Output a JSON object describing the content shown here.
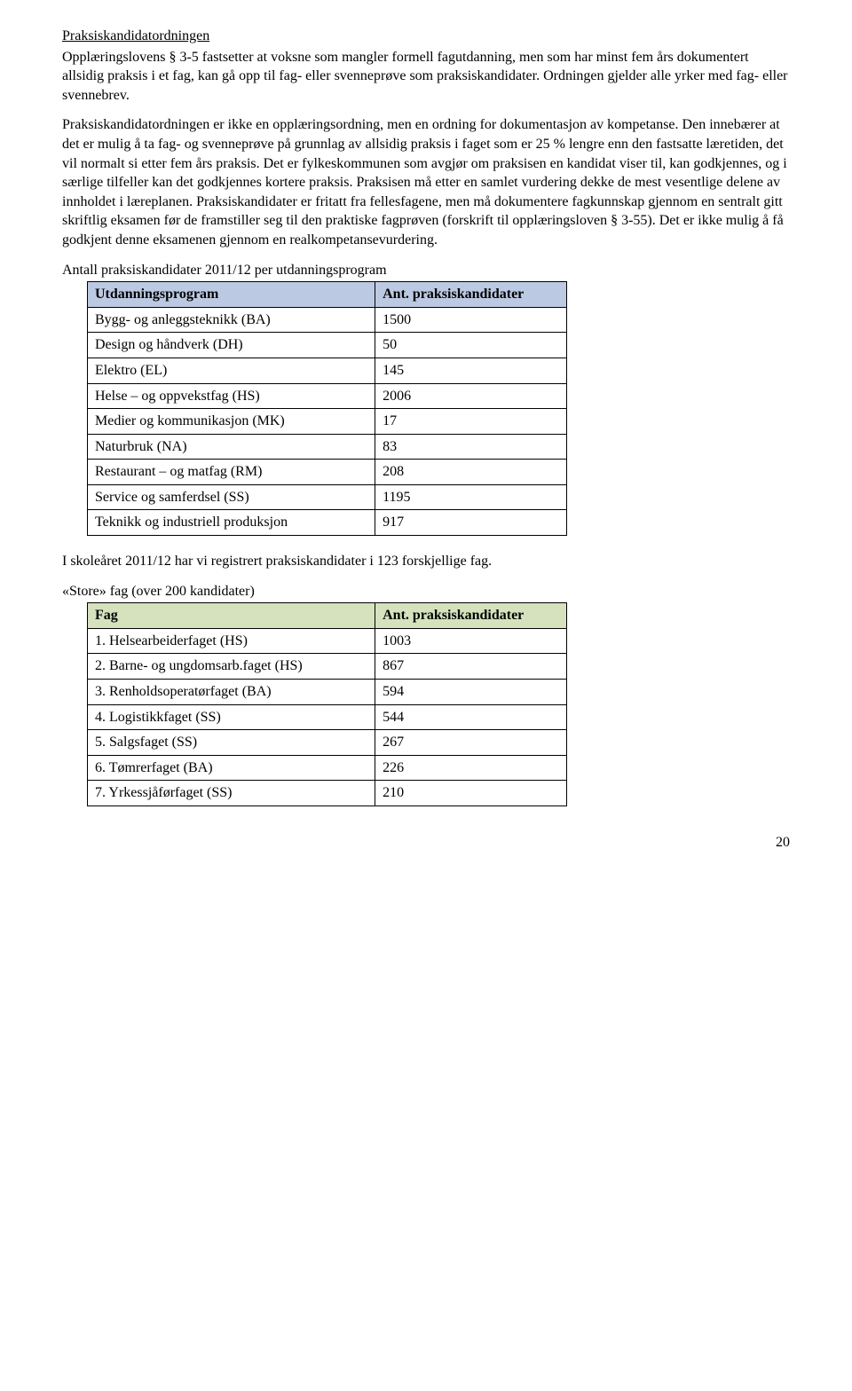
{
  "section_heading": "Praksiskandidatordningen",
  "para1": "Opplæringslovens § 3-5 fastsetter at voksne som mangler formell fagutdanning, men som har minst fem års dokumentert allsidig praksis i et fag, kan gå opp til fag- eller svenneprøve som praksiskandidater. Ordningen gjelder alle yrker med fag- eller svennebrev.",
  "para2": "Praksiskandidatordningen er ikke en opplæringsordning, men en ordning for dokumentasjon av kompetanse. Den innebærer at det er mulig å ta fag- og svenneprøve på grunnlag av allsidig praksis i faget som er 25 % lengre enn den fastsatte læretiden, det vil normalt si etter fem års praksis. Det er fylkeskommunen som avgjør om praksisen en kandidat viser til, kan godkjennes, og i særlige tilfeller kan det godkjennes kortere praksis. Praksisen må etter en samlet vurdering dekke de mest vesentlige delene av innholdet i læreplanen. Praksiskandidater er fritatt fra fellesfagene, men må dokumentere fagkunnskap gjennom en sentralt gitt skriftlig eksamen før de framstiller seg til den praktiske fagprøven (forskrift til opplæringsloven § 3-55). Det er ikke mulig å få godkjent denne eksamenen gjennom en realkompetansevurdering.",
  "table1_title": "Antall praksiskandidater 2011/12 per utdanningsprogram",
  "table1": {
    "header_col1": "Utdanningsprogram",
    "header_col2": "Ant. praksiskandidater",
    "header_bg": "#bcc9e2",
    "rows": [
      {
        "label": "Bygg- og anleggsteknikk (BA)",
        "value": "1500"
      },
      {
        "label": "Design og håndverk (DH)",
        "value": "50"
      },
      {
        "label": "Elektro (EL)",
        "value": "145"
      },
      {
        "label": "Helse – og oppvekstfag (HS)",
        "value": "2006"
      },
      {
        "label": "Medier og kommunikasjon (MK)",
        "value": "17"
      },
      {
        "label": "Naturbruk (NA)",
        "value": "83"
      },
      {
        "label": "Restaurant – og matfag (RM)",
        "value": "208"
      },
      {
        "label": "Service og samferdsel (SS)",
        "value": "1195"
      },
      {
        "label": "Teknikk og industriell produksjon",
        "value": "917"
      }
    ]
  },
  "mid_para": "I skoleåret 2011/12 har vi registrert praksiskandidater i 123 forskjellige fag.",
  "table2_title": "«Store» fag (over 200 kandidater)",
  "table2": {
    "header_col1": "Fag",
    "header_col2": "Ant. praksiskandidater",
    "header_bg": "#d5e2bd",
    "rows": [
      {
        "label": "1.   Helsearbeiderfaget (HS)",
        "value": "1003"
      },
      {
        "label": "2.   Barne- og ungdomsarb.faget (HS)",
        "value": "867"
      },
      {
        "label": "3.   Renholdsoperatørfaget (BA)",
        "value": "594"
      },
      {
        "label": "4.   Logistikkfaget (SS)",
        "value": "544"
      },
      {
        "label": "5.   Salgsfaget (SS)",
        "value": "267"
      },
      {
        "label": "6.   Tømrerfaget (BA)",
        "value": "226"
      },
      {
        "label": "7.   Yrkessjåførfaget (SS)",
        "value": "210"
      }
    ]
  },
  "page_number": "20"
}
